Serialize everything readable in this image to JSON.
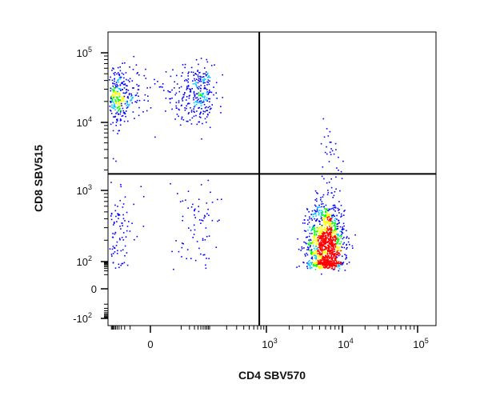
{
  "chart_data": {
    "type": "scatter",
    "title": "",
    "xlabel": "CD4 SBV570",
    "ylabel": "CD8 SBV515",
    "x_scale": "biexponential",
    "y_scale": "biexponential",
    "xlim": [
      -150,
      120000
    ],
    "ylim": [
      -120,
      180000
    ],
    "x_ticks": [
      {
        "base": "0",
        "exp": "",
        "value": 0
      },
      {
        "base": "10",
        "exp": "3",
        "value": 1000
      },
      {
        "base": "10",
        "exp": "4",
        "value": 10000
      },
      {
        "base": "10",
        "exp": "5",
        "value": 100000
      }
    ],
    "y_ticks": [
      {
        "base": "10",
        "exp": "5",
        "value": 100000
      },
      {
        "base": "10",
        "exp": "4",
        "value": 10000
      },
      {
        "base": "10",
        "exp": "3",
        "value": 1000
      },
      {
        "base": "10",
        "exp": "2",
        "value": 100
      },
      {
        "base": "0",
        "exp": "",
        "value": 0
      },
      {
        "base": "-10",
        "exp": "2",
        "value": -100
      }
    ],
    "quadrant_gate": {
      "x": 750,
      "y": 1750
    },
    "populations": [
      {
        "label_visible": false,
        "x_center": 0,
        "y_center": 25000,
        "n": 620,
        "x_spread_log": 0.0,
        "y_spread_log": 0.22
      },
      {
        "label_visible": false,
        "x_center": 6000,
        "y_center": 180,
        "n": 1250,
        "x_spread_log": 0.12,
        "y_spread_log": 0.3
      },
      {
        "label_visible": false,
        "x_center": 0,
        "y_center": 300,
        "n": 160,
        "x_spread_log": 0.0,
        "y_spread_log": 0.35
      },
      {
        "label_visible": false,
        "x_center": 7000,
        "y_center": 4000,
        "n": 30,
        "x_spread_log": 0.08,
        "y_spread_log": 0.25
      }
    ],
    "grid": false,
    "legend": "none",
    "colors": {
      "low_density": "#0000ff",
      "mid_density": "#00c8ff",
      "mid_high_density": "#00ff00",
      "high_density": "#ffff00",
      "peak_density": "#ff0000",
      "gate": "#000000"
    }
  }
}
